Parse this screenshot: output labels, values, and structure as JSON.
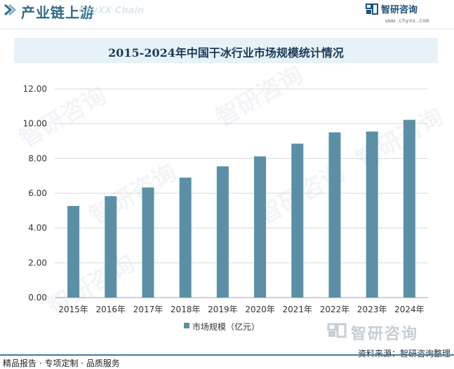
{
  "header": {
    "title": "产业链上游",
    "watermark": "ChyXX Chain"
  },
  "brand": {
    "name": "智研咨询",
    "url": "www.chyxx.com"
  },
  "chart_data": {
    "type": "bar",
    "title": "2015-2024年中国干冰行业市场规模统计情况",
    "categories": [
      "2015年",
      "2016年",
      "2017年",
      "2018年",
      "2019年",
      "2020年",
      "2021年",
      "2022年",
      "2023年",
      "2024年"
    ],
    "series": [
      {
        "name": "市场规模（亿元）",
        "values": [
          5.27,
          5.83,
          6.33,
          6.9,
          7.55,
          8.12,
          8.85,
          9.5,
          9.55,
          10.22
        ]
      }
    ],
    "yticks": [
      "0.00",
      "2.00",
      "4.00",
      "6.00",
      "8.00",
      "10.00",
      "12.00"
    ],
    "ylim": [
      0,
      12
    ],
    "grid": true,
    "legend_position": "bottom",
    "bar_color": "#5b8fa6"
  },
  "bottom_brand": "智研咨询",
  "watermark_text": "智研咨询",
  "source": "资料来源：智研咨询整理",
  "footer": "精品报告 · 专项定制 · 品质服务"
}
